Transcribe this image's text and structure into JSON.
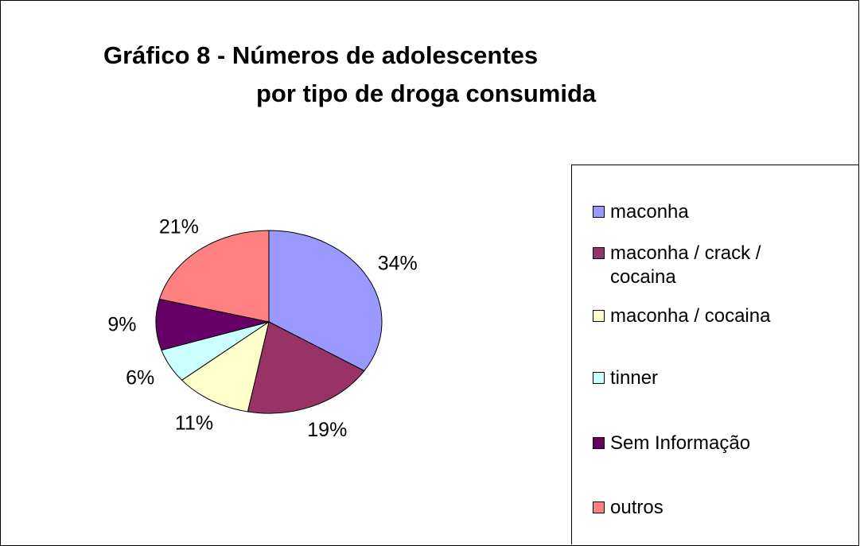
{
  "chart_data": {
    "type": "pie",
    "title": [
      "Gráfico 8 - Números de adolescentes",
      "por tipo de droga consumida"
    ],
    "categories": [
      "maconha",
      "maconha / crack / cocaina",
      "maconha / cocaina",
      "tinner",
      "Sem Informação",
      "outros"
    ],
    "values": [
      34,
      19,
      11,
      6,
      9,
      21
    ],
    "value_labels": [
      "34%",
      "19%",
      "11%",
      "6%",
      "9%",
      "21%"
    ],
    "colors": [
      "#9999ff",
      "#993366",
      "#ffffcc",
      "#ccffff",
      "#660066",
      "#ff8080"
    ],
    "legend": "right"
  }
}
